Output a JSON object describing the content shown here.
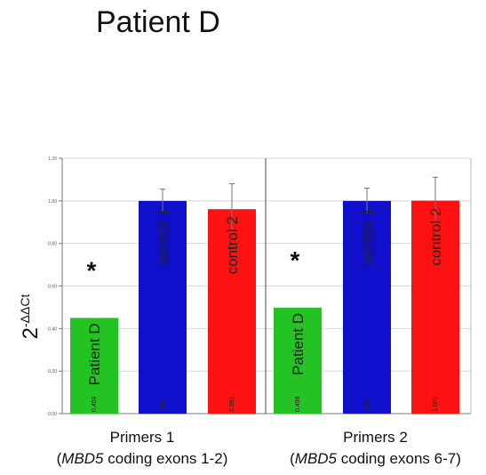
{
  "chart_data": {
    "type": "bar",
    "title": "Patient D",
    "ylabel_base": "2",
    "ylabel_exp": "-ΔΔCt",
    "ylim": [
      0,
      1.2
    ],
    "yticks": [
      "0.00",
      "0.20",
      "0.40",
      "0.60",
      "0.80",
      "1.00",
      "1.20"
    ],
    "significance_marker": "*",
    "colors": {
      "patient": "#22c322",
      "control1": "#1010cc",
      "control2": "#ff1111"
    },
    "groups": [
      {
        "label": "Primers 1",
        "sublabel_gene": "MBD5",
        "sublabel_rest": " coding exons 1-2)",
        "sublabel_open": "(",
        "bars": [
          {
            "name": "Patient D",
            "value": 0.45,
            "value_label": "0.450",
            "error": 0,
            "star": true,
            "color": "#22c322"
          },
          {
            "name": "control 1",
            "value": 1.0,
            "value_label": "1.00",
            "error": 0.055,
            "star": false,
            "color": "#1010cc"
          },
          {
            "name": "control 2",
            "value": 0.961,
            "value_label": "0.961",
            "error": 0.12,
            "star": false,
            "color": "#ff1111"
          }
        ]
      },
      {
        "label": "Primers 2",
        "sublabel_gene": "MBD5",
        "sublabel_rest": " coding exons 6-7)",
        "sublabel_open": "(",
        "bars": [
          {
            "name": "Patient D",
            "value": 0.498,
            "value_label": "0.498",
            "error": 0,
            "star": true,
            "color": "#22c322"
          },
          {
            "name": "control 1",
            "value": 1.0,
            "value_label": "1.00",
            "error": 0.06,
            "star": false,
            "color": "#1010cc"
          },
          {
            "name": "control 2",
            "value": 1.001,
            "value_label": "1.001",
            "error": 0.11,
            "star": false,
            "color": "#ff1111"
          }
        ]
      }
    ]
  }
}
